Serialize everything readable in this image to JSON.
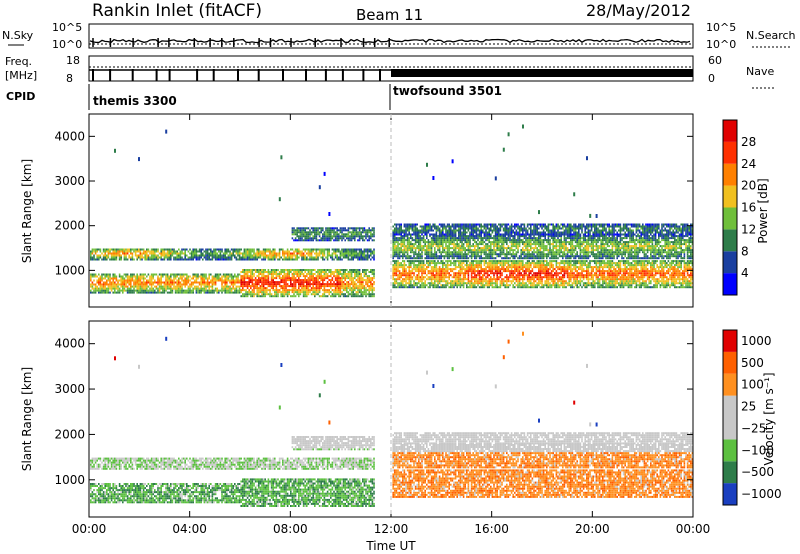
{
  "header": {
    "station": "Rankin Inlet (fitACF)",
    "beam": "Beam 11",
    "date": "28/May/2012"
  },
  "aux": {
    "nsky_label": "N.Sky",
    "nsky_ticks": [
      "10^5",
      "10^0"
    ],
    "nsearch_label": "N.Search",
    "nsearch_ticks": [
      "10^5",
      "10^0"
    ],
    "freq_label": "Freq.",
    "freq_unit": "[MHz]",
    "freq_ticks": [
      "18",
      "8"
    ],
    "nave_label": "Nave",
    "nave_ticks": [
      "60",
      "0"
    ],
    "cpid_label": "CPID",
    "modes": [
      {
        "name": "themis 3300",
        "start_hour": 0
      },
      {
        "name": "twofsound 3501",
        "start_hour": 12
      }
    ]
  },
  "chart_data": [
    {
      "type": "heatmap",
      "panel": "power",
      "ylabel": "Slant Range [km]",
      "xlabel": "",
      "ylim": [
        180,
        4500
      ],
      "y_ticks": [
        "1000",
        "2000",
        "3000",
        "4000"
      ],
      "xlim_hours": [
        0,
        24
      ],
      "colorbar": {
        "label": "Power [dB]",
        "ticks": [
          "4",
          "8",
          "12",
          "16",
          "20",
          "24",
          "28"
        ],
        "colors": [
          "#0000ff",
          "#1a3fa0",
          "#2e7d4a",
          "#6fbf3a",
          "#f0c020",
          "#ff8000",
          "#ff3000",
          "#e00000"
        ]
      }
    },
    {
      "type": "heatmap",
      "panel": "velocity",
      "ylabel": "Slant Range [km]",
      "xlabel": "Time UT",
      "ylim": [
        180,
        4500
      ],
      "y_ticks": [
        "1000",
        "2000",
        "3000",
        "4000"
      ],
      "xlim_hours": [
        0,
        24
      ],
      "x_ticks": [
        "00:00",
        "04:00",
        "08:00",
        "12:00",
        "16:00",
        "20:00",
        "00:00"
      ],
      "colorbar": {
        "label": "Velocity [m s⁻¹]",
        "ticks": [
          "1000",
          "500",
          "100",
          "25",
          "−25",
          "−100",
          "−500",
          "−1000"
        ],
        "colors": [
          "#1a3fc0",
          "#2e7d4a",
          "#5cc040",
          "#c8c8c8",
          "#c8c8c8",
          "#ff9020",
          "#ff6000",
          "#e00000"
        ]
      }
    }
  ]
}
